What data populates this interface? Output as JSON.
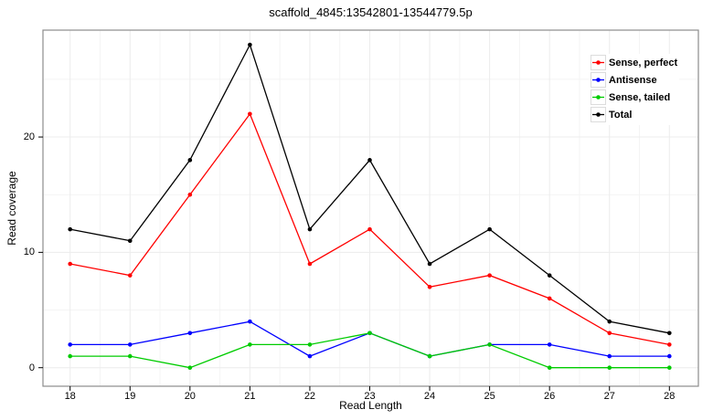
{
  "chart_data": {
    "type": "line",
    "title": "scaffold_4845:13542801-13544779.5p",
    "xlabel": "Read Length",
    "ylabel": "Read coverage",
    "x": [
      18,
      19,
      20,
      21,
      22,
      23,
      24,
      25,
      26,
      27,
      28
    ],
    "series": [
      {
        "name": "Sense, perfect",
        "color": "#ff0000",
        "values": [
          9,
          8,
          15,
          22,
          9,
          12,
          7,
          8,
          6,
          3,
          2
        ]
      },
      {
        "name": "Antisense",
        "color": "#0000ff",
        "values": [
          2,
          2,
          3,
          4,
          1,
          3,
          1,
          2,
          2,
          1,
          1
        ]
      },
      {
        "name": "Sense, tailed",
        "color": "#00cc00",
        "values": [
          1,
          1,
          0,
          2,
          2,
          3,
          1,
          2,
          0,
          0,
          0
        ]
      },
      {
        "name": "Total",
        "color": "#000000",
        "values": [
          12,
          11,
          18,
          28,
          12,
          18,
          9,
          12,
          8,
          4,
          3
        ]
      }
    ],
    "x_ticks": [
      18,
      19,
      20,
      21,
      22,
      23,
      24,
      25,
      26,
      27,
      28
    ],
    "y_ticks": [
      0,
      10,
      20
    ],
    "y_minor_ticks": [
      5,
      15,
      25
    ],
    "x_minor_step": 0.5,
    "xlim": [
      17.55,
      28.45
    ],
    "ylim": [
      -1.6,
      29.3
    ],
    "grid": "on",
    "legend_position": "top-right-inside",
    "style": {
      "panel_border": "#8c8c8c",
      "grid_major": "#ececec",
      "grid_minor": "#f4f4f4",
      "tick_color": "#000000",
      "background": "#ffffff",
      "marker": "filled-circle"
    }
  }
}
